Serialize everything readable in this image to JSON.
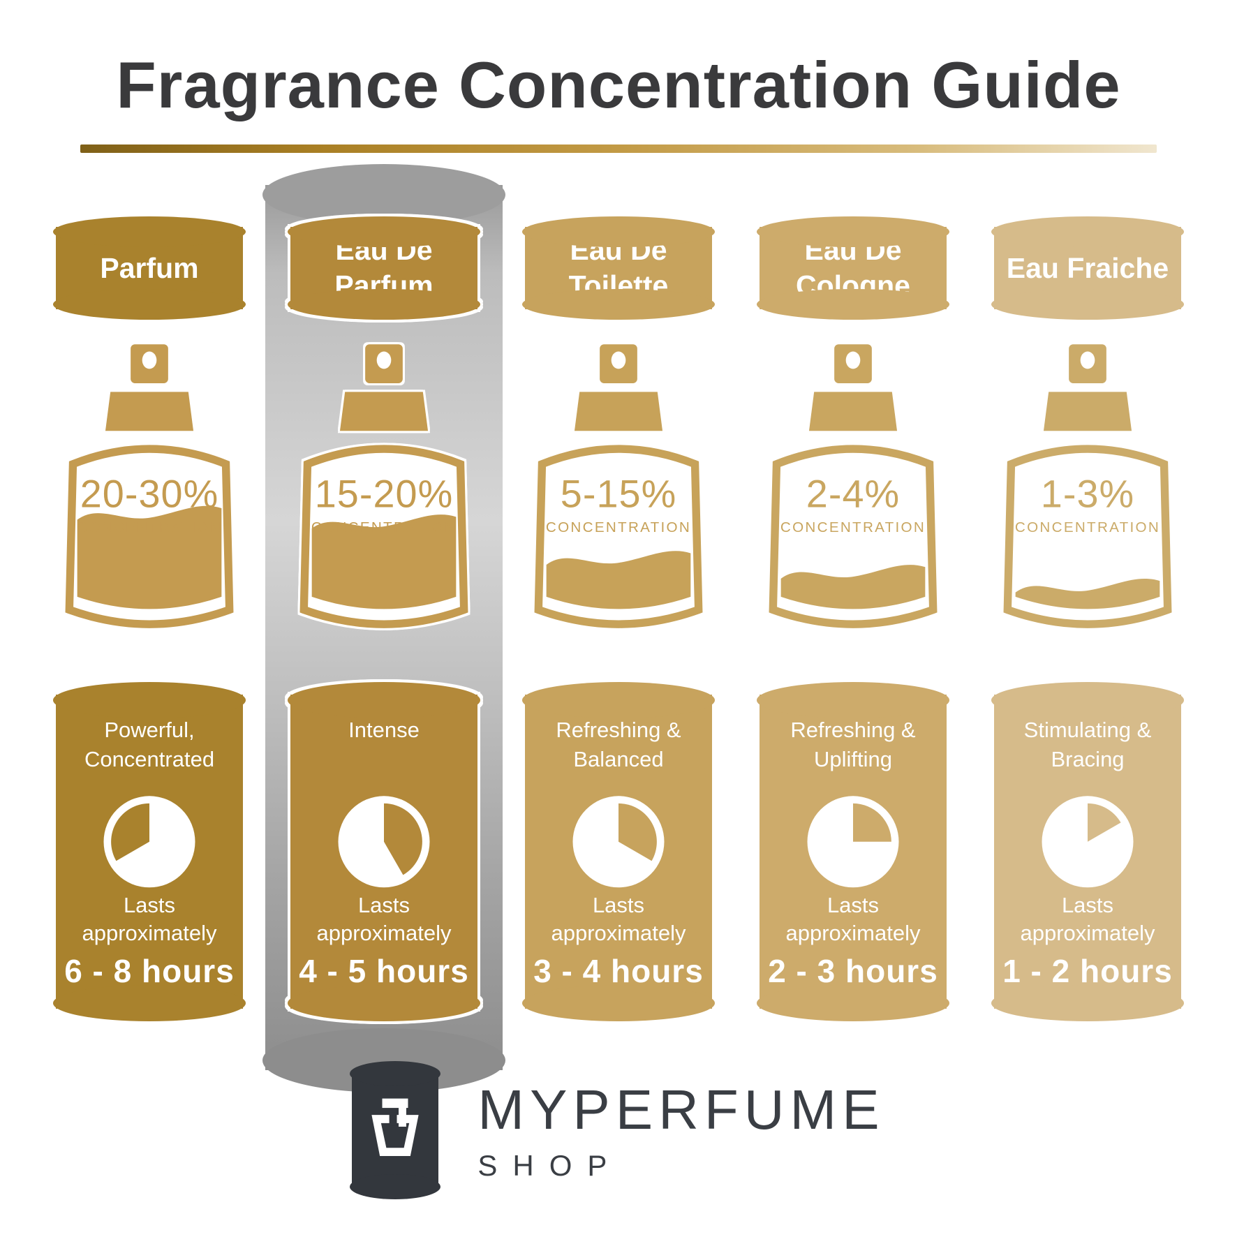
{
  "title": "Fragrance Concentration Guide",
  "highlight_index": 1,
  "labels": {
    "concentration": "CONCENTRATION",
    "lasts_1": "Lasts",
    "lasts_2": "approximately"
  },
  "columns": [
    {
      "name": "Parfum",
      "concentration": "20-30%",
      "description": "Powerful, Concentrated",
      "duration": "6 - 8 hours",
      "fill_percent": 62,
      "pie": {
        "start_deg": 240,
        "end_deg": 360
      },
      "colors": {
        "badge": "#a9822d",
        "card": "#a9822d",
        "bottle": "#c49b50"
      }
    },
    {
      "name": "Eau De Parfum",
      "concentration": "15-20%",
      "description": "Intense",
      "duration": "4 - 5 hours",
      "fill_percent": 57,
      "pie": {
        "start_deg": 0,
        "end_deg": 150
      },
      "colors": {
        "badge": "#b3893a",
        "card": "#b3893a",
        "bottle": "#c49b50"
      }
    },
    {
      "name": "Eau De Toilette",
      "concentration": "5-15%",
      "description": "Refreshing & Balanced",
      "duration": "3 - 4 hours",
      "fill_percent": 36,
      "pie": {
        "start_deg": 0,
        "end_deg": 120
      },
      "colors": {
        "badge": "#c7a35d",
        "card": "#c7a35d",
        "bottle": "#c7a259"
      }
    },
    {
      "name": "Eau De Cologne",
      "concentration": "2-4%",
      "description": "Refreshing & Uplifting",
      "duration": "2 - 3 hours",
      "fill_percent": 28,
      "pie": {
        "start_deg": 0,
        "end_deg": 90
      },
      "colors": {
        "badge": "#cdab6b",
        "card": "#cdab6b",
        "bottle": "#c9a660"
      }
    },
    {
      "name": "Eau Fraiche",
      "concentration": "1-3%",
      "description": "Stimulating & Bracing",
      "duration": "1 - 2 hours",
      "fill_percent": 20,
      "pie": {
        "start_deg": 0,
        "end_deg": 60
      },
      "colors": {
        "badge": "#d6bb8a",
        "card": "#d6bb8a",
        "bottle": "#cbab69"
      }
    }
  ],
  "footer": {
    "brand": "MYPERFUME",
    "sub": "SHOP"
  },
  "palette": {
    "title_text": "#3a3a3c",
    "underline_start": "#7f6018",
    "underline_mid": "#c29a45",
    "underline_end": "#f0e6cf",
    "silver_top": "#9d9d9d",
    "silver_light": "#d6d6d6",
    "silver_dark": "#8d8d8d",
    "logo_bg": "#33373d",
    "logo_text": "#3a3e44"
  }
}
